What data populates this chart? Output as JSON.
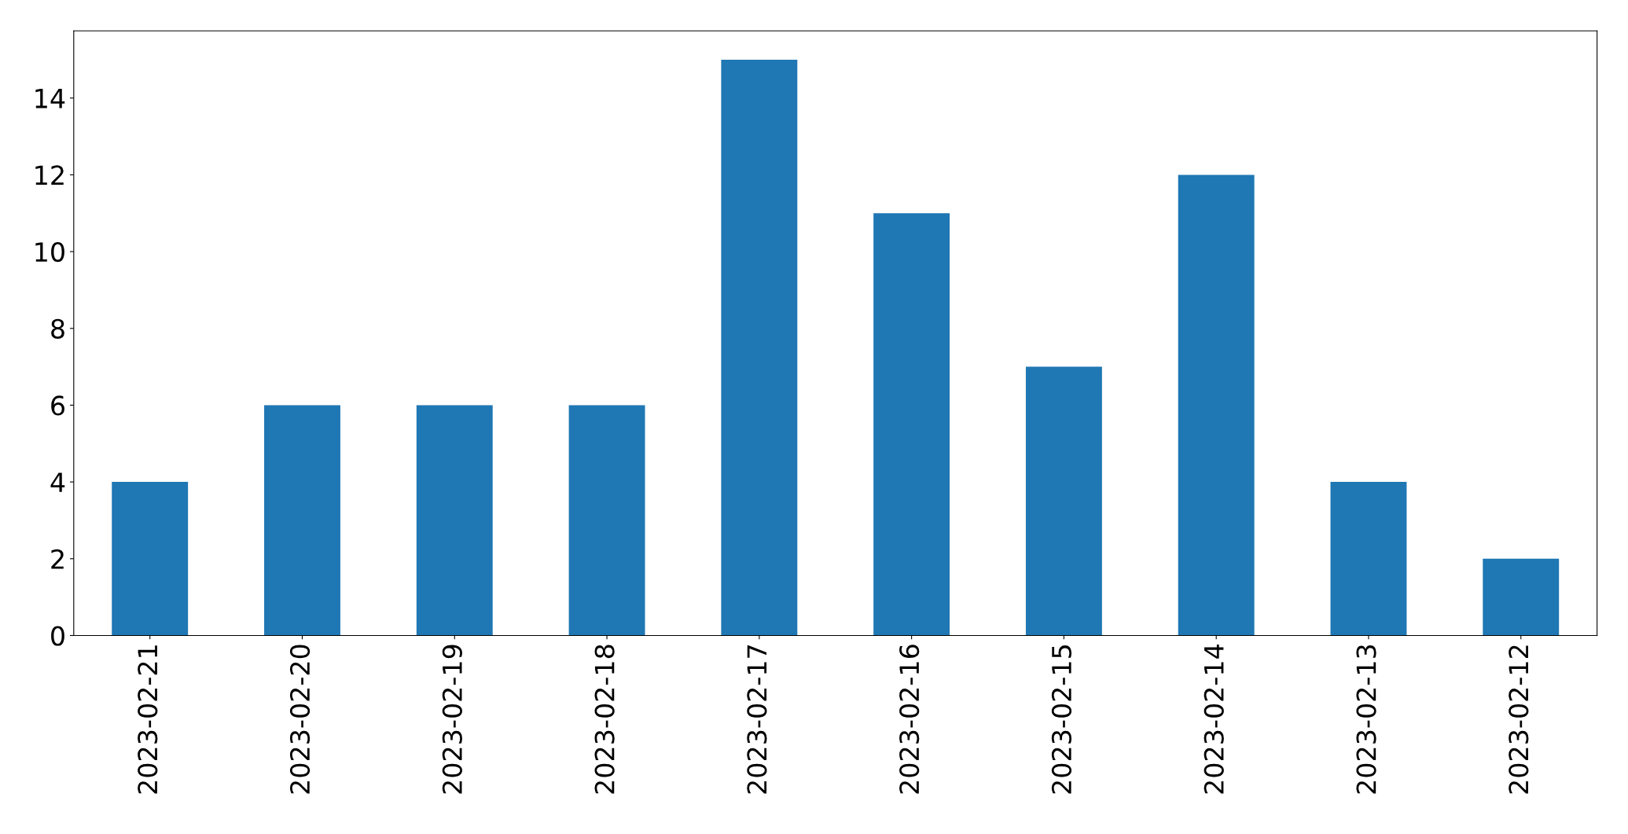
{
  "chart_data": {
    "type": "bar",
    "categories": [
      "2023-02-21",
      "2023-02-20",
      "2023-02-19",
      "2023-02-18",
      "2023-02-17",
      "2023-02-16",
      "2023-02-15",
      "2023-02-14",
      "2023-02-13",
      "2023-02-12"
    ],
    "values": [
      4,
      6,
      6,
      6,
      15,
      11,
      7,
      12,
      4,
      2
    ],
    "color": "#1f77b4",
    "ylim": [
      0,
      15.75
    ],
    "yticks": [
      0,
      2,
      4,
      6,
      8,
      10,
      12,
      14
    ],
    "grid": false,
    "legend": false
  }
}
